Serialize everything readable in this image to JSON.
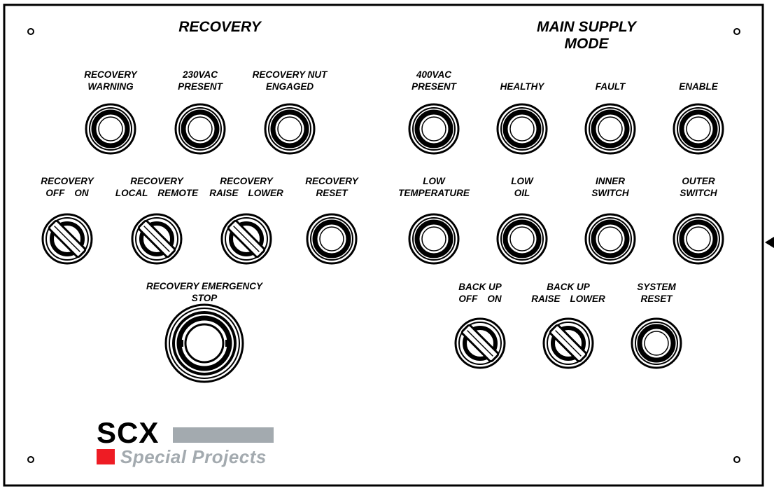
{
  "sections": {
    "recovery_title": "RECOVERY",
    "main_supply_title": [
      "MAIN SUPPLY",
      "MODE"
    ]
  },
  "controls": [
    {
      "id": "recovery-warning-lamp",
      "kind": "lamp",
      "label": [
        "RECOVERY",
        "WARNING"
      ]
    },
    {
      "id": "230vac-present-lamp",
      "kind": "lamp",
      "label": [
        "230VAC",
        "PRESENT"
      ]
    },
    {
      "id": "recovery-nut-engaged-lamp",
      "kind": "lamp",
      "label": [
        "RECOVERY NUT",
        "ENGAGED"
      ]
    },
    {
      "id": "400vac-present-lamp",
      "kind": "lamp",
      "label": [
        "400VAC",
        "PRESENT"
      ]
    },
    {
      "id": "healthy-lamp",
      "kind": "lamp",
      "label": [
        "HEALTHY"
      ]
    },
    {
      "id": "fault-lamp",
      "kind": "lamp",
      "label": [
        "FAULT"
      ]
    },
    {
      "id": "enable-lamp",
      "kind": "lamp",
      "label": [
        "ENABLE"
      ]
    },
    {
      "id": "recovery-off-on-switch",
      "kind": "selector",
      "label": [
        "RECOVERY"
      ],
      "positions": [
        "OFF",
        "ON"
      ]
    },
    {
      "id": "recovery-local-remote-switch",
      "kind": "selector",
      "label": [
        "RECOVERY"
      ],
      "positions": [
        "LOCAL",
        "REMOTE"
      ]
    },
    {
      "id": "recovery-raise-lower-switch",
      "kind": "selector",
      "label": [
        "RECOVERY"
      ],
      "positions": [
        "RAISE",
        "LOWER"
      ]
    },
    {
      "id": "recovery-reset-button",
      "kind": "button",
      "label": [
        "RECOVERY",
        "RESET"
      ]
    },
    {
      "id": "low-temperature-lamp",
      "kind": "lamp",
      "label": [
        "LOW",
        "TEMPERATURE"
      ]
    },
    {
      "id": "low-oil-lamp",
      "kind": "lamp",
      "label": [
        "LOW",
        "OIL"
      ]
    },
    {
      "id": "inner-switch-lamp",
      "kind": "lamp",
      "label": [
        "INNER",
        "SWITCH"
      ]
    },
    {
      "id": "outer-switch-lamp",
      "kind": "lamp",
      "label": [
        "OUTER",
        "SWITCH"
      ]
    },
    {
      "id": "recovery-emergency-stop",
      "kind": "estop",
      "label": [
        "RECOVERY EMERGENCY",
        "STOP"
      ]
    },
    {
      "id": "back-up-off-on-switch",
      "kind": "selector",
      "label": [
        "BACK UP"
      ],
      "positions": [
        "OFF",
        "ON"
      ]
    },
    {
      "id": "back-up-raise-lower-switch",
      "kind": "selector",
      "label": [
        "BACK UP"
      ],
      "positions": [
        "RAISE",
        "LOWER"
      ]
    },
    {
      "id": "system-reset-button",
      "kind": "button",
      "label": [
        "SYSTEM",
        "RESET"
      ]
    }
  ],
  "logo": {
    "brand": "SCX",
    "tagline": "Special Projects",
    "brand_red": "#ee1c24",
    "brand_grey": "#a3aaaf"
  },
  "colors": {
    "ink": "#000000",
    "panel": "#ffffff"
  }
}
